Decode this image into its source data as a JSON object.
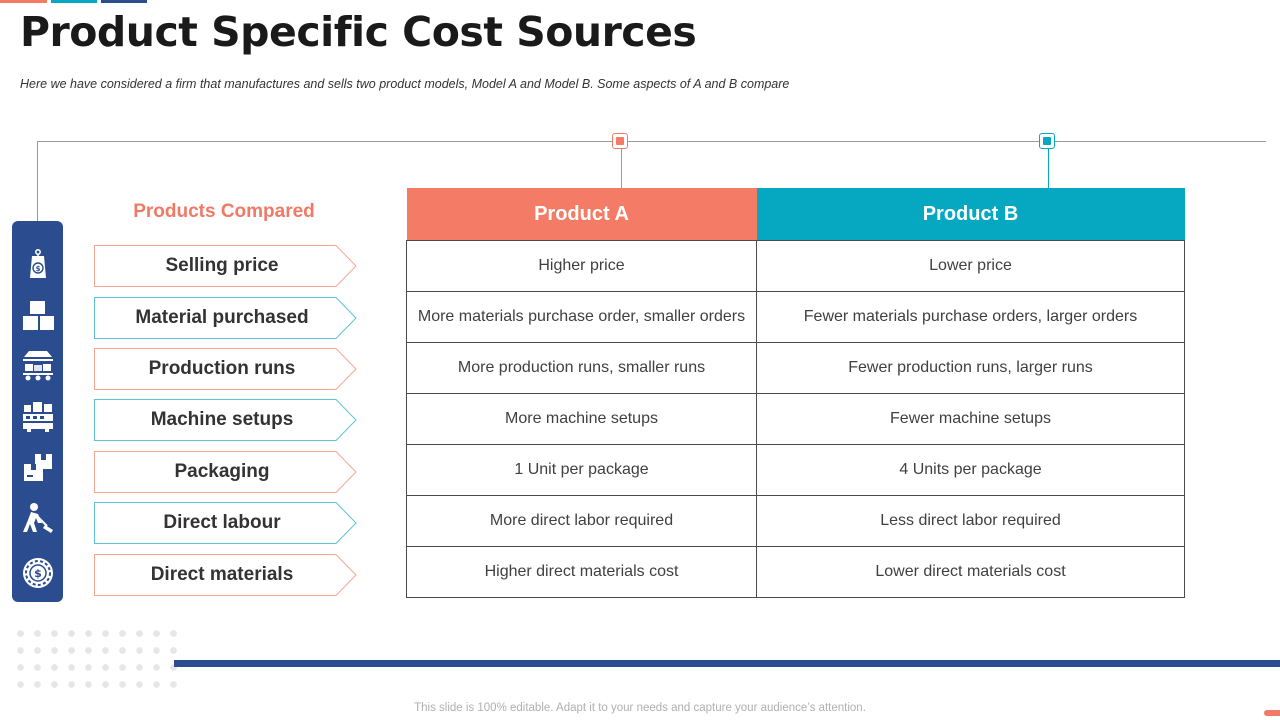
{
  "slide": {
    "title": "Product Specific Cost Sources",
    "subtitle": "Here we have considered a firm that manufactures and sells two product models, Model A and Model B. Some aspects of A and B compare",
    "footer": "This slide is 100% editable. Adapt it to your needs and capture your audience’s attention."
  },
  "colors": {
    "accent_coral": "#f47c66",
    "accent_teal": "#06a7c1",
    "navy": "#2b4d8f"
  },
  "compared": {
    "title": "Products Compared",
    "items": [
      {
        "label": "Selling price",
        "icon": "price-tag-icon",
        "style": "coral"
      },
      {
        "label": "Material purchased",
        "icon": "boxes-icon",
        "style": "teal"
      },
      {
        "label": "Production runs",
        "icon": "conveyor-icon",
        "style": "coral"
      },
      {
        "label": "Machine setups",
        "icon": "machine-icon",
        "style": "teal"
      },
      {
        "label": "Packaging",
        "icon": "package-icon",
        "style": "coral"
      },
      {
        "label": "Direct labour",
        "icon": "worker-icon",
        "style": "teal"
      },
      {
        "label": "Direct materials",
        "icon": "coin-gear-icon",
        "style": "coral"
      }
    ]
  },
  "table": {
    "headers": [
      "Product A",
      "Product B"
    ],
    "rows": [
      [
        "Higher price",
        "Lower price"
      ],
      [
        "More materials purchase order, smaller orders",
        "Fewer materials purchase orders, larger orders"
      ],
      [
        "More production runs,  smaller runs",
        "Fewer production runs, larger runs"
      ],
      [
        "More machine setups",
        "Fewer machine setups"
      ],
      [
        "1 Unit per package",
        "4 Units per package"
      ],
      [
        "More direct labor required",
        "Less direct labor required"
      ],
      [
        "Higher direct materials cost",
        "Lower direct materials cost"
      ]
    ]
  }
}
